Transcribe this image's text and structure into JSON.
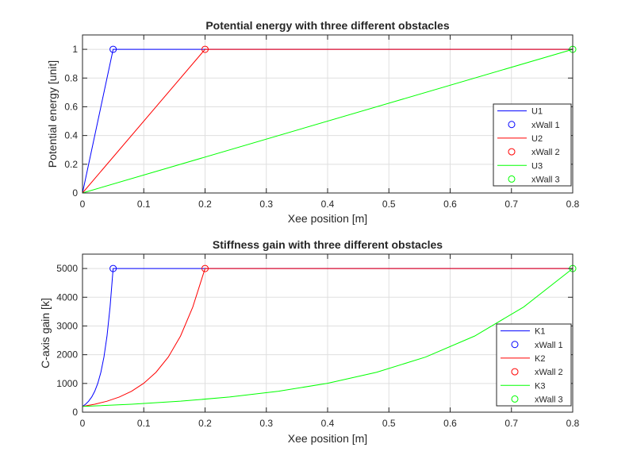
{
  "chart_data": [
    {
      "type": "line",
      "title": "Potential energy with three different obstacles",
      "xlabel": "Xee position [m]",
      "ylabel": "Potential energy [unit]",
      "xlim": [
        0,
        0.8
      ],
      "ylim": [
        0,
        1.1
      ],
      "xticks": [
        0,
        0.1,
        0.2,
        0.3,
        0.4,
        0.5,
        0.6,
        0.7,
        0.8
      ],
      "xtick_labels": [
        "0",
        "0.1",
        "0.2",
        "0.3",
        "0.4",
        "0.5",
        "0.6",
        "0.7",
        "0.8"
      ],
      "yticks": [
        0,
        0.2,
        0.4,
        0.6,
        0.8,
        1
      ],
      "ytick_labels": [
        "0",
        "0.2",
        "0.4",
        "0.6",
        "0.8",
        "1"
      ],
      "grid": true,
      "legend_position": "right",
      "series": [
        {
          "name": "U1",
          "kind": "line",
          "color": "#0000ff",
          "x": [
            0,
            0.05,
            0.8
          ],
          "y": [
            0,
            1,
            1
          ]
        },
        {
          "name": "xWall 1",
          "kind": "marker",
          "color": "#0000ff",
          "x": [
            0.05
          ],
          "y": [
            1
          ]
        },
        {
          "name": "U2",
          "kind": "line",
          "color": "#ff0000",
          "x": [
            0,
            0.2,
            0.8
          ],
          "y": [
            0,
            1,
            1
          ]
        },
        {
          "name": "xWall 2",
          "kind": "marker",
          "color": "#ff0000",
          "x": [
            0.2
          ],
          "y": [
            1
          ]
        },
        {
          "name": "U3",
          "kind": "line",
          "color": "#00ff00",
          "x": [
            0,
            0.8
          ],
          "y": [
            0,
            1
          ]
        },
        {
          "name": "xWall 3",
          "kind": "marker",
          "color": "#00ff00",
          "x": [
            0.8
          ],
          "y": [
            1
          ]
        }
      ]
    },
    {
      "type": "line",
      "title": "Stiffness gain with three different obstacles",
      "xlabel": "Xee position [m]",
      "ylabel": "C-axis gain [k]",
      "xlim": [
        0,
        0.8
      ],
      "ylim": [
        0,
        5500
      ],
      "xticks": [
        0,
        0.1,
        0.2,
        0.3,
        0.4,
        0.5,
        0.6,
        0.7,
        0.8
      ],
      "xtick_labels": [
        "0",
        "0.1",
        "0.2",
        "0.3",
        "0.4",
        "0.5",
        "0.6",
        "0.7",
        "0.8"
      ],
      "yticks": [
        0,
        1000,
        2000,
        3000,
        4000,
        5000
      ],
      "ytick_labels": [
        "0",
        "1000",
        "2000",
        "3000",
        "4000",
        "5000"
      ],
      "grid": true,
      "legend_position": "right",
      "series": [
        {
          "name": "K1",
          "kind": "line",
          "color": "#0000ff",
          "x": [
            0,
            0.005,
            0.01,
            0.015,
            0.02,
            0.025,
            0.03,
            0.035,
            0.04,
            0.045,
            0.05,
            0.8
          ],
          "y": [
            200,
            276,
            382,
            527,
            728,
            1006,
            1389,
            1919,
            2650,
            3661,
            5000,
            5000
          ]
        },
        {
          "name": "xWall 1",
          "kind": "marker",
          "color": "#0000ff",
          "x": [
            0.05
          ],
          "y": [
            5000
          ]
        },
        {
          "name": "K2",
          "kind": "line",
          "color": "#ff0000",
          "x": [
            0,
            0.02,
            0.04,
            0.06,
            0.08,
            0.1,
            0.12,
            0.14,
            0.16,
            0.18,
            0.2,
            0.8
          ],
          "y": [
            200,
            276,
            382,
            527,
            728,
            1006,
            1389,
            1919,
            2650,
            3661,
            5000,
            5000
          ]
        },
        {
          "name": "xWall 2",
          "kind": "marker",
          "color": "#ff0000",
          "x": [
            0.2
          ],
          "y": [
            5000
          ]
        },
        {
          "name": "K3",
          "kind": "line",
          "color": "#00ff00",
          "x": [
            0,
            0.08,
            0.16,
            0.24,
            0.32,
            0.4,
            0.48,
            0.56,
            0.64,
            0.72,
            0.8
          ],
          "y": [
            200,
            276,
            382,
            527,
            728,
            1006,
            1389,
            1919,
            2650,
            3661,
            5000
          ]
        },
        {
          "name": "xWall 3",
          "kind": "marker",
          "color": "#00ff00",
          "x": [
            0.8
          ],
          "y": [
            5000
          ]
        }
      ]
    }
  ]
}
